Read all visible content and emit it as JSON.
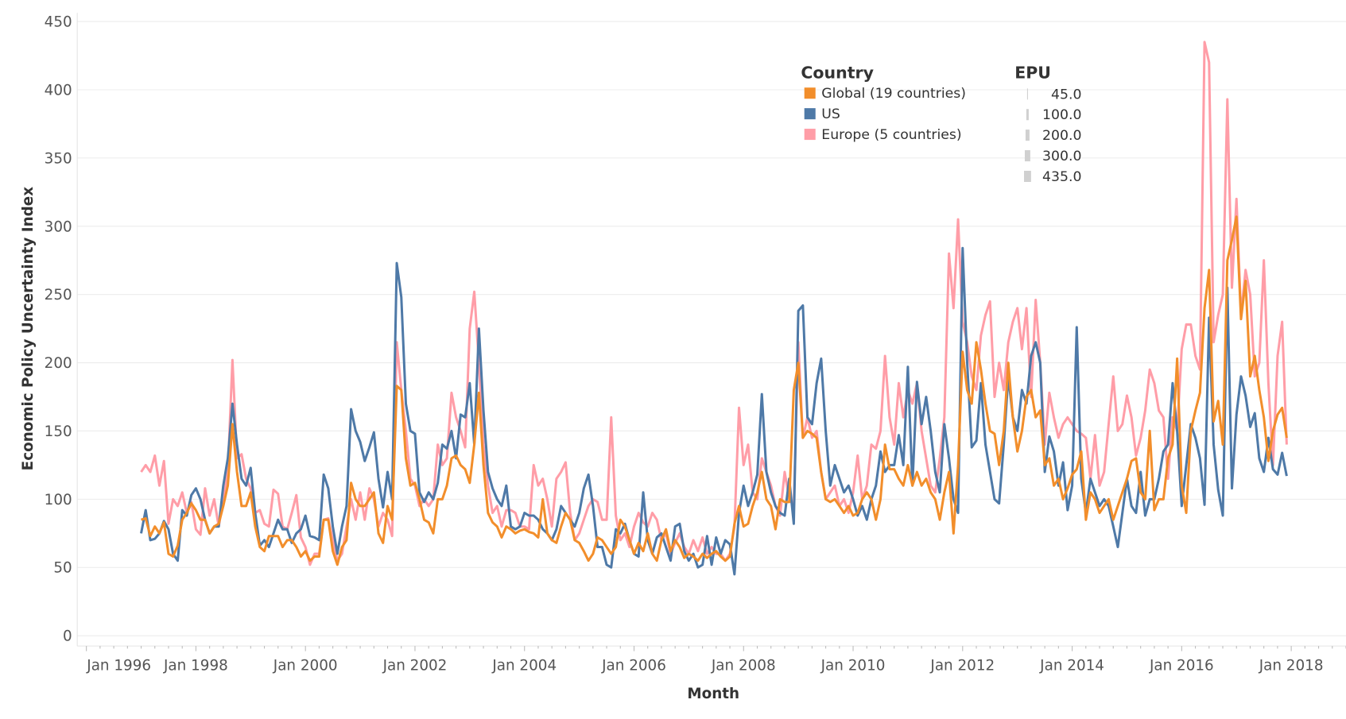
{
  "chart_data": {
    "type": "line",
    "xlabel": "Month",
    "ylabel": "Economic Policy Uncertainty Index",
    "ylim": [
      0,
      450
    ],
    "yticks": [
      0,
      50,
      100,
      150,
      200,
      250,
      300,
      350,
      400,
      450
    ],
    "xlim": [
      "1995-11",
      "2019-01"
    ],
    "xticks": [
      "Jan 1996",
      "Jan 1998",
      "Jan 2000",
      "Jan 2002",
      "Jan 2004",
      "Jan 2006",
      "Jan 2008",
      "Jan 2010",
      "Jan 2012",
      "Jan 2014",
      "Jan 2016",
      "Jan 2018"
    ],
    "grid": true,
    "x_start": "1997-01",
    "x_end": "2017-12",
    "x_frequency": "monthly",
    "legend": {
      "placement": "top-right",
      "color_title": "Country",
      "size_title": "EPU",
      "size_entries": [
        "45.0",
        "100.0",
        "200.0",
        "300.0",
        "435.0"
      ]
    },
    "series": [
      {
        "name": "Europe (5 countries)",
        "color": "#ff9da7",
        "values": [
          120,
          125,
          120,
          132,
          110,
          128,
          82,
          100,
          95,
          105,
          90,
          98,
          78,
          74,
          108,
          88,
          100,
          80,
          100,
          120,
          202,
          130,
          133,
          115,
          108,
          90,
          92,
          82,
          80,
          107,
          104,
          80,
          78,
          90,
          103,
          72,
          65,
          52,
          60,
          60,
          85,
          86,
          70,
          55,
          60,
          80,
          100,
          85,
          105,
          85,
          108,
          100,
          80,
          90,
          85,
          73,
          215,
          180,
          150,
          115,
          110,
          95,
          100,
          95,
          100,
          140,
          125,
          130,
          178,
          160,
          150,
          138,
          225,
          252,
          200,
          140,
          110,
          90,
          95,
          80,
          92,
          92,
          90,
          80,
          80,
          78,
          125,
          110,
          115,
          100,
          80,
          115,
          120,
          127,
          90,
          70,
          75,
          85,
          95,
          100,
          98,
          85,
          85,
          160,
          88,
          70,
          75,
          65,
          80,
          90,
          83,
          80,
          90,
          85,
          70,
          75,
          60,
          68,
          75,
          65,
          60,
          70,
          62,
          72,
          60,
          65,
          60,
          60,
          55,
          60,
          80,
          167,
          125,
          140,
          105,
          100,
          130,
          120,
          110,
          95,
          88,
          120,
          100,
          95,
          215,
          145,
          160,
          145,
          150,
          120,
          100,
          105,
          110,
          95,
          100,
          90,
          105,
          132,
          100,
          110,
          140,
          137,
          150,
          205,
          160,
          140,
          185,
          160,
          180,
          170,
          185,
          150,
          130,
          110,
          105,
          130,
          160,
          280,
          240,
          305,
          230,
          215,
          190,
          180,
          220,
          235,
          245,
          175,
          200,
          180,
          215,
          230,
          240,
          210,
          240,
          175,
          246,
          200,
          140,
          178,
          160,
          145,
          155,
          160,
          155,
          150,
          148,
          145,
          115,
          147,
          110,
          120,
          155,
          190,
          150,
          155,
          176,
          160,
          132,
          145,
          165,
          195,
          185,
          165,
          160,
          115,
          160,
          150,
          210,
          228,
          228,
          205,
          195,
          435,
          420,
          215,
          235,
          250,
          393,
          255,
          320,
          235,
          268,
          250,
          190,
          200,
          275,
          185,
          125,
          205,
          230,
          140
        ]
      },
      {
        "name": "US",
        "color": "#4e79a7",
        "values": [
          75,
          92,
          70,
          71,
          75,
          84,
          78,
          60,
          55,
          92,
          88,
          103,
          108,
          100,
          85,
          75,
          80,
          80,
          110,
          130,
          170,
          140,
          115,
          110,
          123,
          90,
          66,
          70,
          65,
          75,
          85,
          78,
          78,
          68,
          75,
          78,
          88,
          73,
          72,
          70,
          118,
          108,
          80,
          60,
          80,
          95,
          166,
          150,
          142,
          128,
          138,
          149,
          115,
          94,
          120,
          100,
          273,
          248,
          170,
          150,
          148,
          105,
          98,
          105,
          100,
          112,
          140,
          137,
          150,
          130,
          162,
          160,
          185,
          140,
          225,
          165,
          120,
          108,
          100,
          95,
          110,
          80,
          78,
          80,
          90,
          88,
          88,
          85,
          78,
          75,
          70,
          78,
          95,
          90,
          85,
          80,
          90,
          108,
          118,
          95,
          65,
          65,
          52,
          50,
          78,
          75,
          82,
          70,
          60,
          58,
          105,
          70,
          60,
          72,
          75,
          65,
          55,
          80,
          82,
          62,
          55,
          60,
          50,
          52,
          73,
          52,
          72,
          60,
          70,
          67,
          45,
          90,
          110,
          95,
          105,
          118,
          177,
          120,
          105,
          95,
          90,
          88,
          115,
          82,
          238,
          242,
          160,
          155,
          185,
          203,
          150,
          110,
          125,
          115,
          105,
          110,
          100,
          88,
          95,
          85,
          100,
          110,
          135,
          120,
          125,
          125,
          147,
          125,
          197,
          110,
          186,
          155,
          175,
          150,
          120,
          105,
          155,
          130,
          100,
          90,
          284,
          200,
          138,
          143,
          185,
          140,
          120,
          100,
          97,
          140,
          190,
          160,
          150,
          180,
          170,
          205,
          215,
          200,
          120,
          146,
          135,
          110,
          127,
          92,
          110,
          226,
          115,
          90,
          115,
          105,
          95,
          100,
          95,
          80,
          65,
          90,
          115,
          95,
          90,
          120,
          88,
          100,
          100,
          115,
          135,
          140,
          185,
          150,
          95,
          125,
          155,
          145,
          130,
          96,
          233,
          140,
          107,
          88,
          255,
          108,
          162,
          190,
          176,
          153,
          163,
          130,
          120,
          145,
          122,
          118,
          134,
          117
        ]
      },
      {
        "name": "Global (19 countries)",
        "color": "#f28e2b",
        "values": [
          85,
          86,
          73,
          80,
          75,
          83,
          60,
          58,
          66,
          85,
          90,
          97,
          92,
          85,
          85,
          75,
          80,
          82,
          95,
          110,
          155,
          120,
          95,
          95,
          105,
          80,
          65,
          62,
          73,
          73,
          73,
          65,
          70,
          70,
          65,
          58,
          62,
          55,
          58,
          58,
          85,
          85,
          62,
          52,
          65,
          70,
          112,
          100,
          95,
          95,
          100,
          105,
          75,
          68,
          95,
          85,
          183,
          180,
          130,
          110,
          112,
          100,
          85,
          83,
          75,
          100,
          100,
          110,
          130,
          132,
          125,
          122,
          112,
          140,
          178,
          125,
          90,
          83,
          80,
          72,
          80,
          78,
          75,
          77,
          78,
          76,
          75,
          72,
          100,
          75,
          70,
          68,
          80,
          90,
          85,
          70,
          68,
          62,
          55,
          60,
          72,
          70,
          65,
          60,
          65,
          85,
          80,
          70,
          60,
          68,
          62,
          75,
          60,
          55,
          70,
          78,
          62,
          70,
          65,
          57,
          60,
          58,
          55,
          60,
          57,
          60,
          62,
          58,
          55,
          58,
          82,
          95,
          80,
          82,
          95,
          105,
          120,
          100,
          95,
          78,
          100,
          98,
          98,
          180,
          200,
          145,
          150,
          148,
          145,
          120,
          100,
          98,
          100,
          95,
          90,
          95,
          88,
          90,
          100,
          105,
          100,
          85,
          100,
          140,
          122,
          122,
          115,
          110,
          125,
          110,
          120,
          110,
          115,
          105,
          100,
          85,
          105,
          120,
          75,
          125,
          208,
          180,
          170,
          215,
          195,
          170,
          150,
          148,
          125,
          150,
          200,
          160,
          135,
          150,
          175,
          180,
          160,
          165,
          125,
          130,
          110,
          115,
          100,
          108,
          118,
          122,
          135,
          85,
          105,
          100,
          90,
          95,
          100,
          85,
          95,
          105,
          115,
          128,
          130,
          105,
          100,
          150,
          92,
          100,
          100,
          130,
          140,
          203,
          110,
          90,
          150,
          165,
          178,
          240,
          268,
          157,
          172,
          140,
          275,
          290,
          307,
          232,
          260,
          190,
          205,
          180,
          160,
          128,
          150,
          162,
          167,
          145
        ]
      }
    ]
  }
}
